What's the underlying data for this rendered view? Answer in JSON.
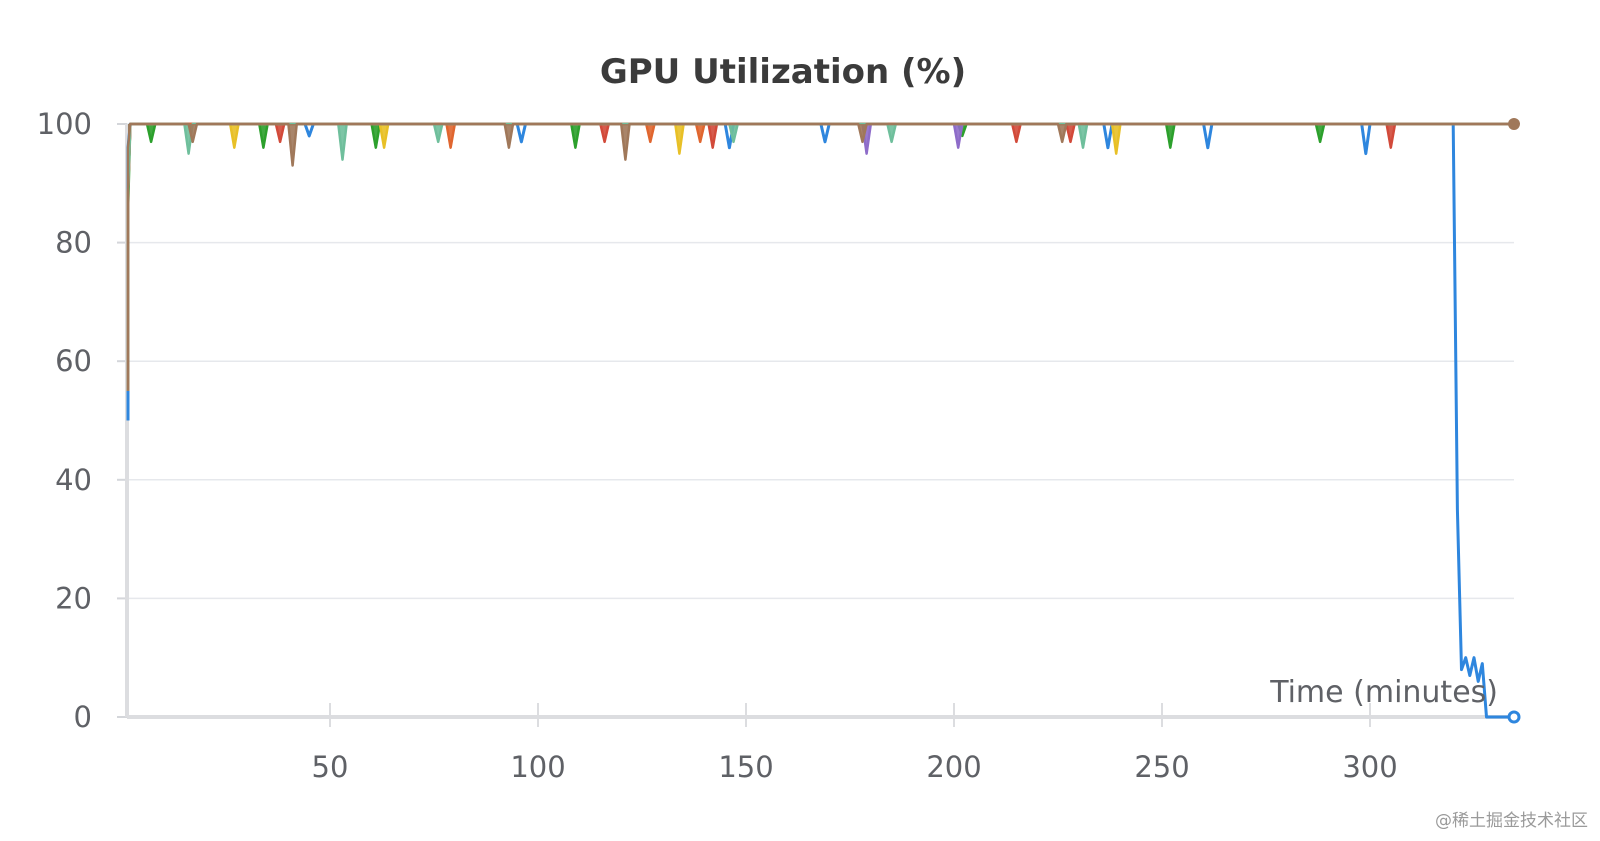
{
  "chart_data": {
    "type": "line",
    "title": "GPU Utilization (%)",
    "xlabel": "Time (minutes)",
    "ylabel": "",
    "xlim": [
      0,
      335
    ],
    "ylim": [
      0,
      100
    ],
    "x_ticks": [
      50,
      100,
      150,
      200,
      250,
      300
    ],
    "y_ticks": [
      0,
      20,
      40,
      60,
      80,
      100
    ],
    "grid": "horizontal",
    "legend": "none",
    "series_colors": [
      "#2e86de",
      "#2ca02c",
      "#e8c027",
      "#8e6cc9",
      "#d24a3a",
      "#e0662f",
      "#6fbf9c",
      "#a0785a"
    ],
    "series": [
      {
        "name": "blue",
        "color": "#2e86de",
        "x": [
          0,
          0.5,
          1,
          2,
          44,
          45,
          46,
          95,
          96,
          97,
          98,
          145,
          146,
          147,
          168,
          169,
          170,
          236,
          237,
          238,
          260,
          261,
          262,
          298,
          299,
          300,
          320,
          321,
          322,
          323,
          324,
          325,
          326,
          327,
          328,
          335
        ],
        "values": [
          50,
          85,
          96,
          100,
          100,
          98,
          100,
          100,
          97,
          100,
          100,
          100,
          96,
          100,
          100,
          97,
          100,
          100,
          96,
          100,
          100,
          96,
          100,
          100,
          95,
          100,
          100,
          35,
          8,
          10,
          7,
          10,
          6,
          9,
          0,
          0
        ]
      },
      {
        "name": "green",
        "color": "#2ca02c",
        "x": [
          0,
          1,
          2,
          6,
          7,
          8,
          33,
          34,
          35,
          60,
          61,
          62,
          108,
          109,
          110,
          201,
          202,
          203,
          251,
          252,
          253,
          287,
          288,
          289,
          335
        ],
        "values": [
          55,
          85,
          100,
          100,
          97,
          100,
          100,
          96,
          100,
          100,
          96,
          100,
          100,
          96,
          100,
          100,
          98,
          100,
          100,
          96,
          100,
          100,
          97,
          100,
          100
        ]
      },
      {
        "name": "yellow",
        "color": "#e8c027",
        "x": [
          0,
          1,
          2,
          26,
          27,
          28,
          62,
          63,
          64,
          133,
          134,
          135,
          238,
          239,
          240,
          335
        ],
        "values": [
          55,
          88,
          100,
          100,
          96,
          100,
          100,
          96,
          100,
          100,
          95,
          100,
          100,
          95,
          100,
          100
        ]
      },
      {
        "name": "purple",
        "color": "#8e6cc9",
        "x": [
          0,
          1,
          2,
          178,
          179,
          180,
          200,
          201,
          202,
          335
        ],
        "values": [
          55,
          88,
          100,
          100,
          95,
          100,
          100,
          96,
          100,
          100
        ]
      },
      {
        "name": "red",
        "color": "#d24a3a",
        "x": [
          0,
          1,
          2,
          37,
          38,
          39,
          115,
          116,
          117,
          141,
          142,
          143,
          214,
          215,
          216,
          227,
          228,
          229,
          304,
          305,
          306,
          335
        ],
        "values": [
          55,
          88,
          100,
          100,
          97,
          100,
          100,
          97,
          100,
          100,
          96,
          100,
          100,
          97,
          100,
          100,
          97,
          100,
          100,
          96,
          100,
          100
        ]
      },
      {
        "name": "orange",
        "color": "#e0662f",
        "x": [
          0,
          1,
          2,
          78,
          79,
          80,
          126,
          127,
          128,
          138,
          139,
          140,
          336
        ],
        "values": [
          55,
          88,
          100,
          100,
          96,
          100,
          100,
          97,
          100,
          100,
          97,
          100,
          100
        ]
      },
      {
        "name": "teal",
        "color": "#6fbf9c",
        "x": [
          0,
          1,
          2,
          15,
          16,
          17,
          52,
          53,
          54,
          75,
          76,
          77,
          146,
          147,
          148,
          184,
          185,
          186,
          230,
          231,
          232,
          335
        ],
        "values": [
          55,
          88,
          100,
          100,
          95,
          100,
          100,
          94,
          100,
          100,
          97,
          100,
          100,
          97,
          100,
          100,
          97,
          100,
          100,
          96,
          100,
          100
        ]
      },
      {
        "name": "brown",
        "color": "#a0785a",
        "x": [
          0,
          1,
          2,
          3,
          16,
          17,
          18,
          40,
          41,
          42,
          92,
          93,
          94,
          120,
          121,
          122,
          177,
          178,
          179,
          225,
          226,
          227,
          335
        ],
        "values": [
          55,
          96,
          100,
          100,
          100,
          97,
          100,
          100,
          93,
          100,
          100,
          96,
          100,
          100,
          94,
          100,
          100,
          97,
          100,
          100,
          97,
          100,
          100
        ]
      }
    ]
  },
  "watermark": "@稀土掘金技术社区"
}
